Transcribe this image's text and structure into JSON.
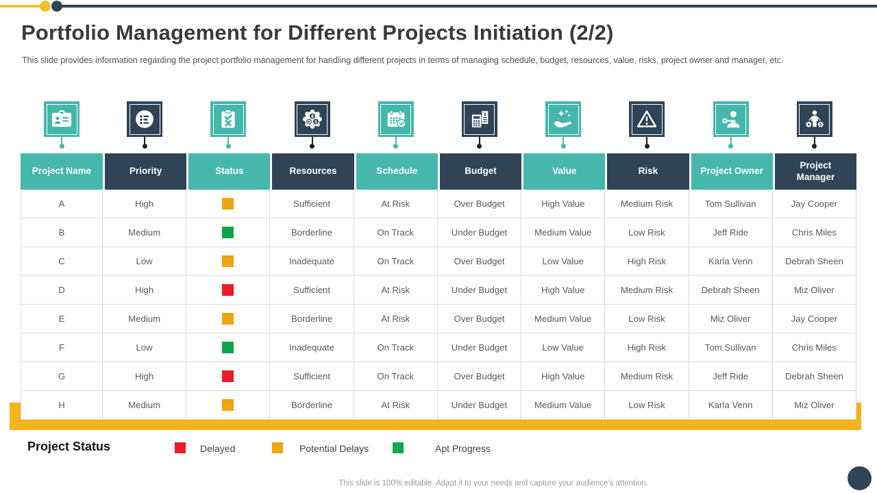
{
  "slide": {
    "title": "Portfolio Management for Different Projects Initiation (2/2)",
    "subtitle": "This slide provides information regarding the project portfolio management for handling different projects in terms of managing schedule, budget, resources, value, risks, project owner and manager, etc.",
    "footer": "This slide is 100% editable. Adapt it to your needs and capture your audience's attention."
  },
  "colors": {
    "teal": "#45B7AC",
    "navy": "#2F4456",
    "accent_yellow_line": "#F2C12F",
    "accent_yellow_band": "#F5B31E",
    "status_red": "#EC1B24",
    "status_amber": "#F0A410",
    "status_green": "#0EA64C"
  },
  "table": {
    "columns": [
      {
        "label": "Project Name",
        "theme": "teal",
        "icon": "id-card-icon"
      },
      {
        "label": "Priority",
        "theme": "navy",
        "icon": "priority-list-icon"
      },
      {
        "label": "Status",
        "theme": "teal",
        "icon": "status-clipboard-icon"
      },
      {
        "label": "Resources",
        "theme": "navy",
        "icon": "resources-gear-icon"
      },
      {
        "label": "Schedule",
        "theme": "teal",
        "icon": "schedule-calendar-icon"
      },
      {
        "label": "Budget",
        "theme": "navy",
        "icon": "budget-calculator-icon"
      },
      {
        "label": "Value",
        "theme": "teal",
        "icon": "value-hand-icon"
      },
      {
        "label": "Risk",
        "theme": "navy",
        "icon": "risk-warning-icon"
      },
      {
        "label": "Project Owner",
        "theme": "teal",
        "icon": "project-owner-icon"
      },
      {
        "label": "Project Manager",
        "theme": "navy",
        "icon": "project-manager-icon"
      }
    ],
    "rows": [
      {
        "name": "A",
        "priority": "High",
        "status": "amber",
        "resources": "Sufficient",
        "schedule": "At Risk",
        "budget": "Over Budget",
        "value": "High Value",
        "risk": "Medium Risk",
        "owner": "Tom Sullivan",
        "manager": "Jay Cooper"
      },
      {
        "name": "B",
        "priority": "Medium",
        "status": "green",
        "resources": "Borderline",
        "schedule": "On Track",
        "budget": "Under Budget",
        "value": "Medium Value",
        "risk": "Low Risk",
        "owner": "Jeff Ride",
        "manager": "Chris Miles"
      },
      {
        "name": "C",
        "priority": "Low",
        "status": "amber",
        "resources": "Inadequate",
        "schedule": "On Track",
        "budget": "Over Budget",
        "value": "Low Value",
        "risk": "High Risk",
        "owner": "Karla Venn",
        "manager": "Debrah Sheen"
      },
      {
        "name": "D",
        "priority": "High",
        "status": "red",
        "resources": "Sufficient",
        "schedule": "At Risk",
        "budget": "Under Budget",
        "value": "High Value",
        "risk": "Medium Risk",
        "owner": "Debrah Sheen",
        "manager": "Miz Oliver"
      },
      {
        "name": "E",
        "priority": "Medium",
        "status": "amber",
        "resources": "Borderline",
        "schedule": "At Risk",
        "budget": "Over Budget",
        "value": "Medium Value",
        "risk": "Low Risk",
        "owner": "Miz Oliver",
        "manager": "Jay Cooper"
      },
      {
        "name": "F",
        "priority": "Low",
        "status": "green",
        "resources": "Inadequate",
        "schedule": "On Track",
        "budget": "Under Budget",
        "value": "Low Value",
        "risk": "High Risk",
        "owner": "Tom Sullivan",
        "manager": "Chris Miles"
      },
      {
        "name": "G",
        "priority": "High",
        "status": "red",
        "resources": "Sufficient",
        "schedule": "On Track",
        "budget": "Over Budget",
        "value": "High Value",
        "risk": "Medium Risk",
        "owner": "Jeff Ride",
        "manager": "Debrah Sheen"
      },
      {
        "name": "H",
        "priority": "Medium",
        "status": "amber",
        "resources": "Borderline",
        "schedule": "At Risk",
        "budget": "Under Budget",
        "value": "Medium Value",
        "risk": "Low Risk",
        "owner": "Karla Venn",
        "manager": "Miz Oliver"
      }
    ]
  },
  "legend": {
    "title": "Project Status",
    "items": [
      {
        "label": "Delayed",
        "status": "red"
      },
      {
        "label": "Potential Delays",
        "status": "amber"
      },
      {
        "label": "Apt Progress",
        "status": "green"
      }
    ]
  }
}
